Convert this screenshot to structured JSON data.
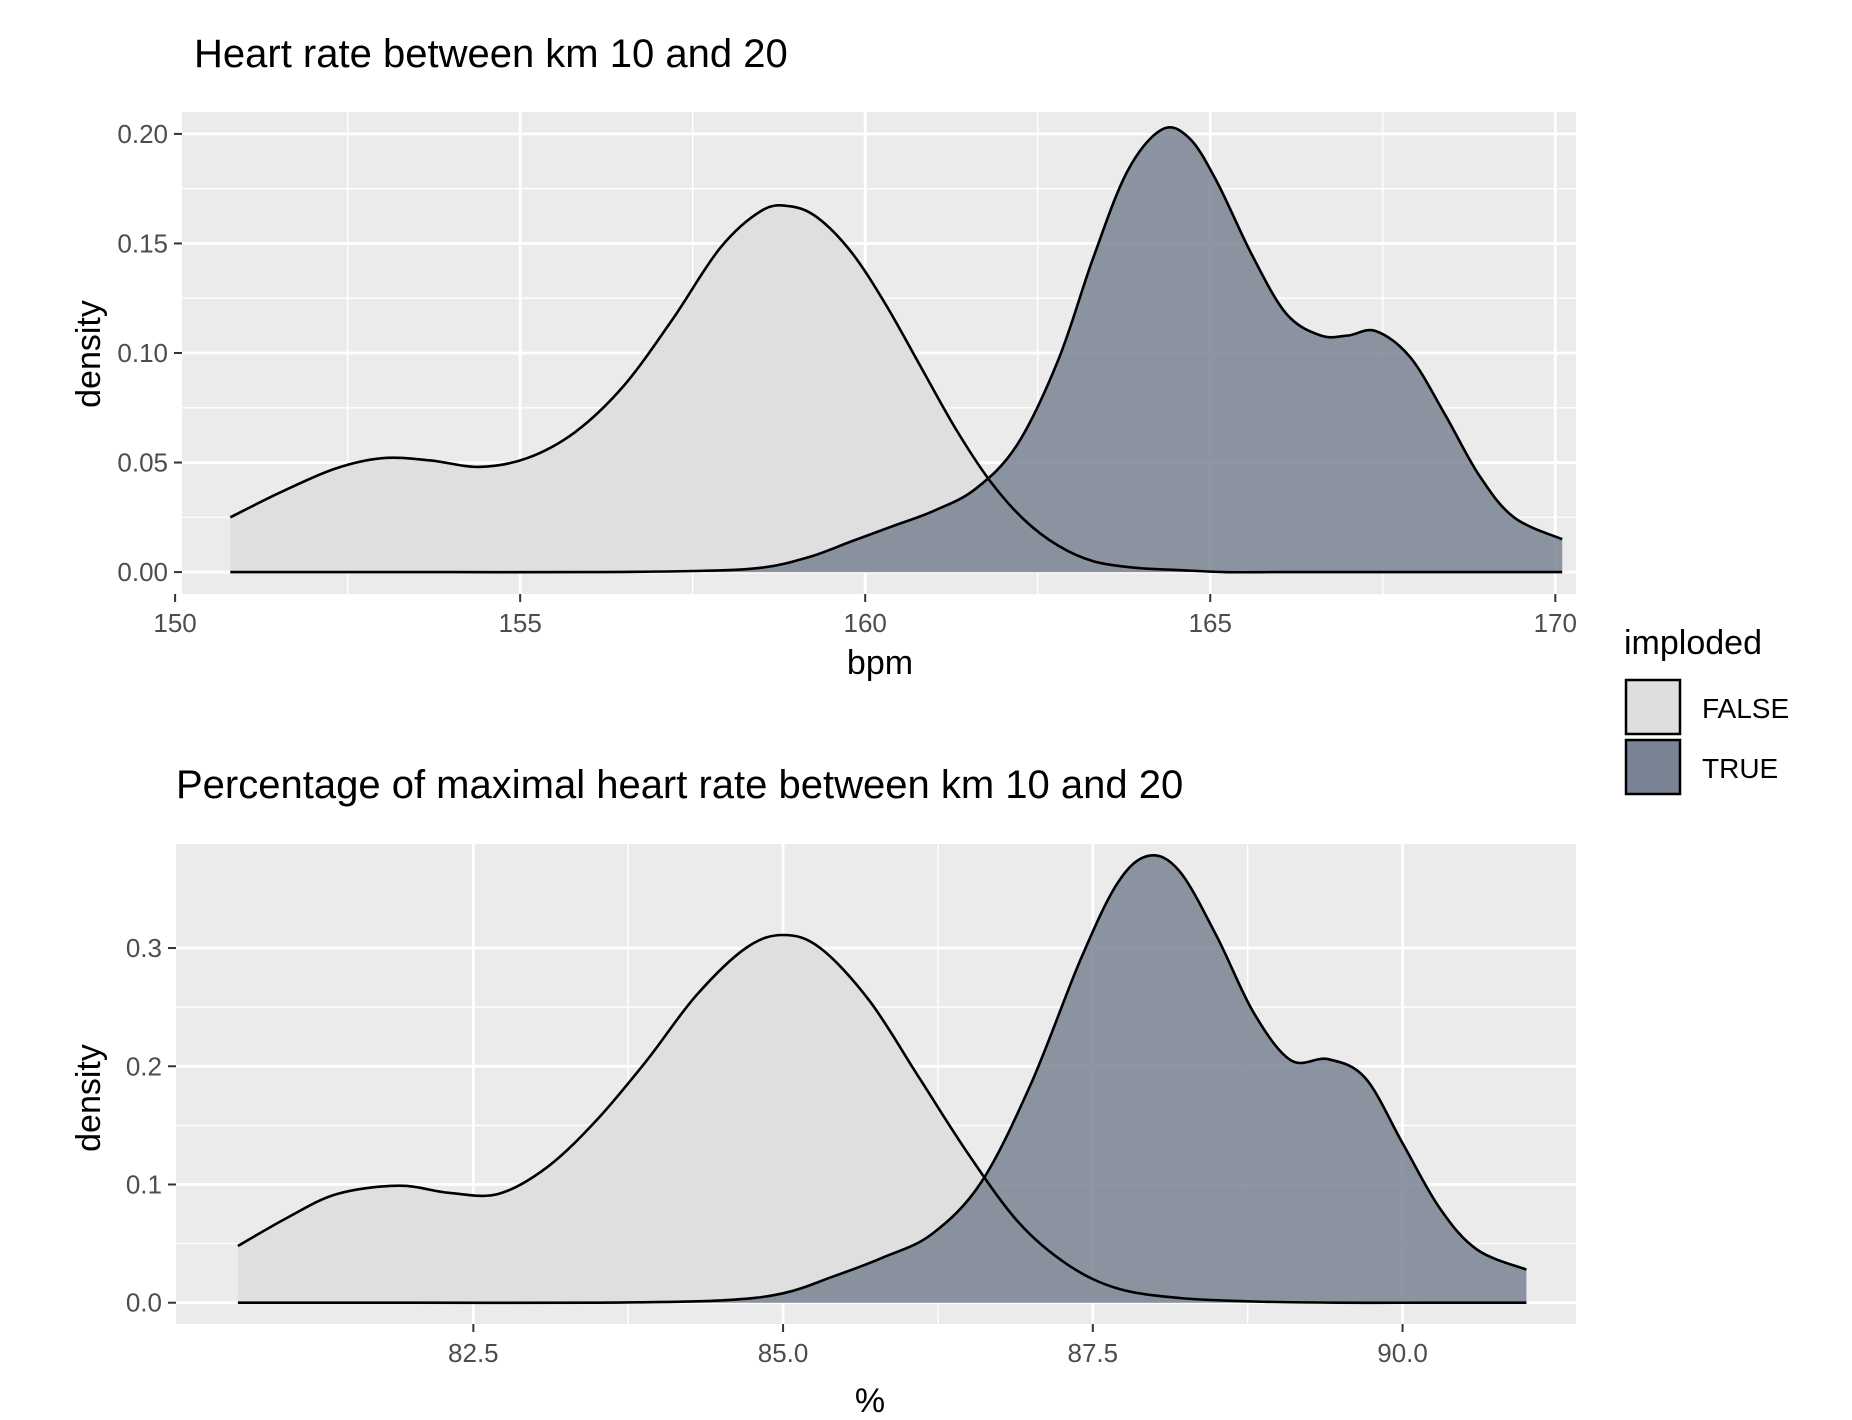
{
  "colors": {
    "panel": "#ebebeb",
    "grid": "#ffffff",
    "false_fill": "#dedede",
    "true_fill": "#7a8393",
    "line": "#000000"
  },
  "legend": {
    "title": "imploded",
    "items": [
      {
        "label": "FALSE",
        "color": "#dedede"
      },
      {
        "label": "TRUE",
        "color": "#7a8393"
      }
    ]
  },
  "chart_data": [
    {
      "type": "area",
      "title": "Heart rate between km 10 and 20",
      "xlabel": "bpm",
      "ylabel": "density",
      "xlim": [
        150.1,
        170.3
      ],
      "ylim": [
        -0.01,
        0.21
      ],
      "xticks": [
        150,
        155,
        160,
        165,
        170
      ],
      "xtick_labels": [
        "150",
        "155",
        "160",
        "165",
        "170"
      ],
      "yticks": [
        0,
        0.05,
        0.1,
        0.15,
        0.2
      ],
      "ytick_labels": [
        "0.00",
        "0.05",
        "0.10",
        "0.15",
        "0.20"
      ],
      "series": [
        {
          "name": "FALSE",
          "x": [
            150.8,
            151.5,
            152.3,
            153.0,
            153.7,
            154.4,
            155.1,
            155.8,
            156.5,
            157.2,
            157.9,
            158.5,
            158.9,
            159.3,
            159.8,
            160.3,
            160.8,
            161.3,
            161.8,
            162.3,
            162.8,
            163.3,
            163.9,
            164.5,
            165.2,
            166.0,
            167.0,
            168.0,
            169.0,
            170.1
          ],
          "y": [
            0.025,
            0.036,
            0.047,
            0.052,
            0.051,
            0.048,
            0.052,
            0.064,
            0.085,
            0.115,
            0.148,
            0.165,
            0.167,
            0.162,
            0.146,
            0.122,
            0.094,
            0.066,
            0.042,
            0.024,
            0.012,
            0.005,
            0.002,
            0.001,
            0,
            0,
            0,
            0,
            0,
            0
          ]
        },
        {
          "name": "TRUE",
          "x": [
            150.8,
            152.0,
            154.0,
            156.0,
            157.5,
            158.5,
            159.2,
            159.8,
            160.4,
            161.0,
            161.6,
            162.2,
            162.8,
            163.3,
            163.8,
            164.3,
            164.7,
            165.1,
            165.6,
            166.1,
            166.6,
            167.0,
            167.4,
            167.9,
            168.4,
            168.9,
            169.4,
            170.1
          ],
          "y": [
            0,
            0,
            0,
            0,
            0.0005,
            0.002,
            0.007,
            0.014,
            0.021,
            0.028,
            0.038,
            0.058,
            0.097,
            0.143,
            0.183,
            0.202,
            0.198,
            0.178,
            0.145,
            0.118,
            0.108,
            0.108,
            0.11,
            0.098,
            0.072,
            0.044,
            0.025,
            0.015
          ]
        }
      ]
    },
    {
      "type": "area",
      "title": "Percentage of maximal heart rate between km 10 and 20",
      "xlabel": "%",
      "ylabel": "density",
      "xlim": [
        80.1,
        91.4
      ],
      "ylim": [
        -0.018,
        0.388
      ],
      "xticks": [
        82.5,
        85.0,
        87.5,
        90.0
      ],
      "xtick_labels": [
        "82.5",
        "85.0",
        "87.5",
        "90.0"
      ],
      "yticks": [
        0,
        0.1,
        0.2,
        0.3
      ],
      "ytick_labels": [
        "0.0",
        "0.1",
        "0.2",
        "0.3"
      ],
      "series": [
        {
          "name": "FALSE",
          "x": [
            80.6,
            81.0,
            81.4,
            81.9,
            82.3,
            82.7,
            83.1,
            83.5,
            83.9,
            84.3,
            84.7,
            85.0,
            85.3,
            85.7,
            86.1,
            86.5,
            86.9,
            87.3,
            87.7,
            88.2,
            88.8,
            89.5,
            90.2,
            91.0
          ],
          "y": [
            0.048,
            0.072,
            0.092,
            0.099,
            0.093,
            0.092,
            0.115,
            0.155,
            0.205,
            0.26,
            0.3,
            0.311,
            0.3,
            0.255,
            0.19,
            0.125,
            0.068,
            0.032,
            0.012,
            0.004,
            0.001,
            0,
            0,
            0
          ]
        },
        {
          "name": "TRUE",
          "x": [
            80.6,
            82.0,
            83.5,
            84.5,
            85.0,
            85.4,
            85.8,
            86.2,
            86.6,
            87.0,
            87.4,
            87.7,
            87.95,
            88.2,
            88.5,
            88.8,
            89.1,
            89.4,
            89.7,
            90.0,
            90.3,
            90.6,
            91.0
          ],
          "y": [
            0,
            0,
            0,
            0.002,
            0.008,
            0.022,
            0.038,
            0.058,
            0.102,
            0.185,
            0.29,
            0.355,
            0.378,
            0.365,
            0.31,
            0.245,
            0.205,
            0.206,
            0.19,
            0.135,
            0.08,
            0.045,
            0.028
          ]
        }
      ]
    }
  ]
}
